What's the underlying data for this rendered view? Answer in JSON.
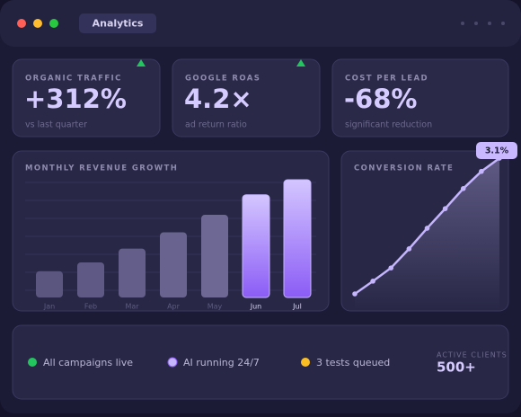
{
  "window": {
    "tab": "Analytics"
  },
  "kpis": [
    {
      "label": "ORGANIC TRAFFIC",
      "value": "+312%",
      "note": "vs last quarter"
    },
    {
      "label": "GOOGLE ROAS",
      "value": "4.2×",
      "note": "ad return ratio"
    },
    {
      "label": "COST PER LEAD",
      "value": "-68%",
      "note": "significant reduction"
    }
  ],
  "chart_data": [
    {
      "type": "bar",
      "title": "MONTHLY REVENUE GROWTH",
      "categories": [
        "Jan",
        "Feb",
        "Mar",
        "Apr",
        "May",
        "Jun",
        "Jul"
      ],
      "values": [
        21,
        28,
        39,
        52,
        66,
        82,
        94
      ],
      "colors": [
        "#5b5680",
        "#5f5a85",
        "#645e8a",
        "#69638f",
        "#6e6894",
        "#a78bfa",
        "#a78bfa"
      ]
    },
    {
      "type": "line",
      "title": "CONVERSION RATE",
      "values": [
        0.33,
        0.59,
        0.86,
        1.25,
        1.67,
        2.07,
        2.48,
        2.83,
        3.1
      ],
      "value_labels": [
        null,
        null,
        null,
        null,
        null,
        null,
        null,
        null,
        "3.1%"
      ],
      "color": "#c4b5fd"
    }
  ],
  "status": {
    "items": [
      "All campaigns live",
      "AI running 24/7",
      "3 tests queued"
    ],
    "clients_label": "ACTIVE CLIENTS",
    "clients_value": "500+"
  }
}
